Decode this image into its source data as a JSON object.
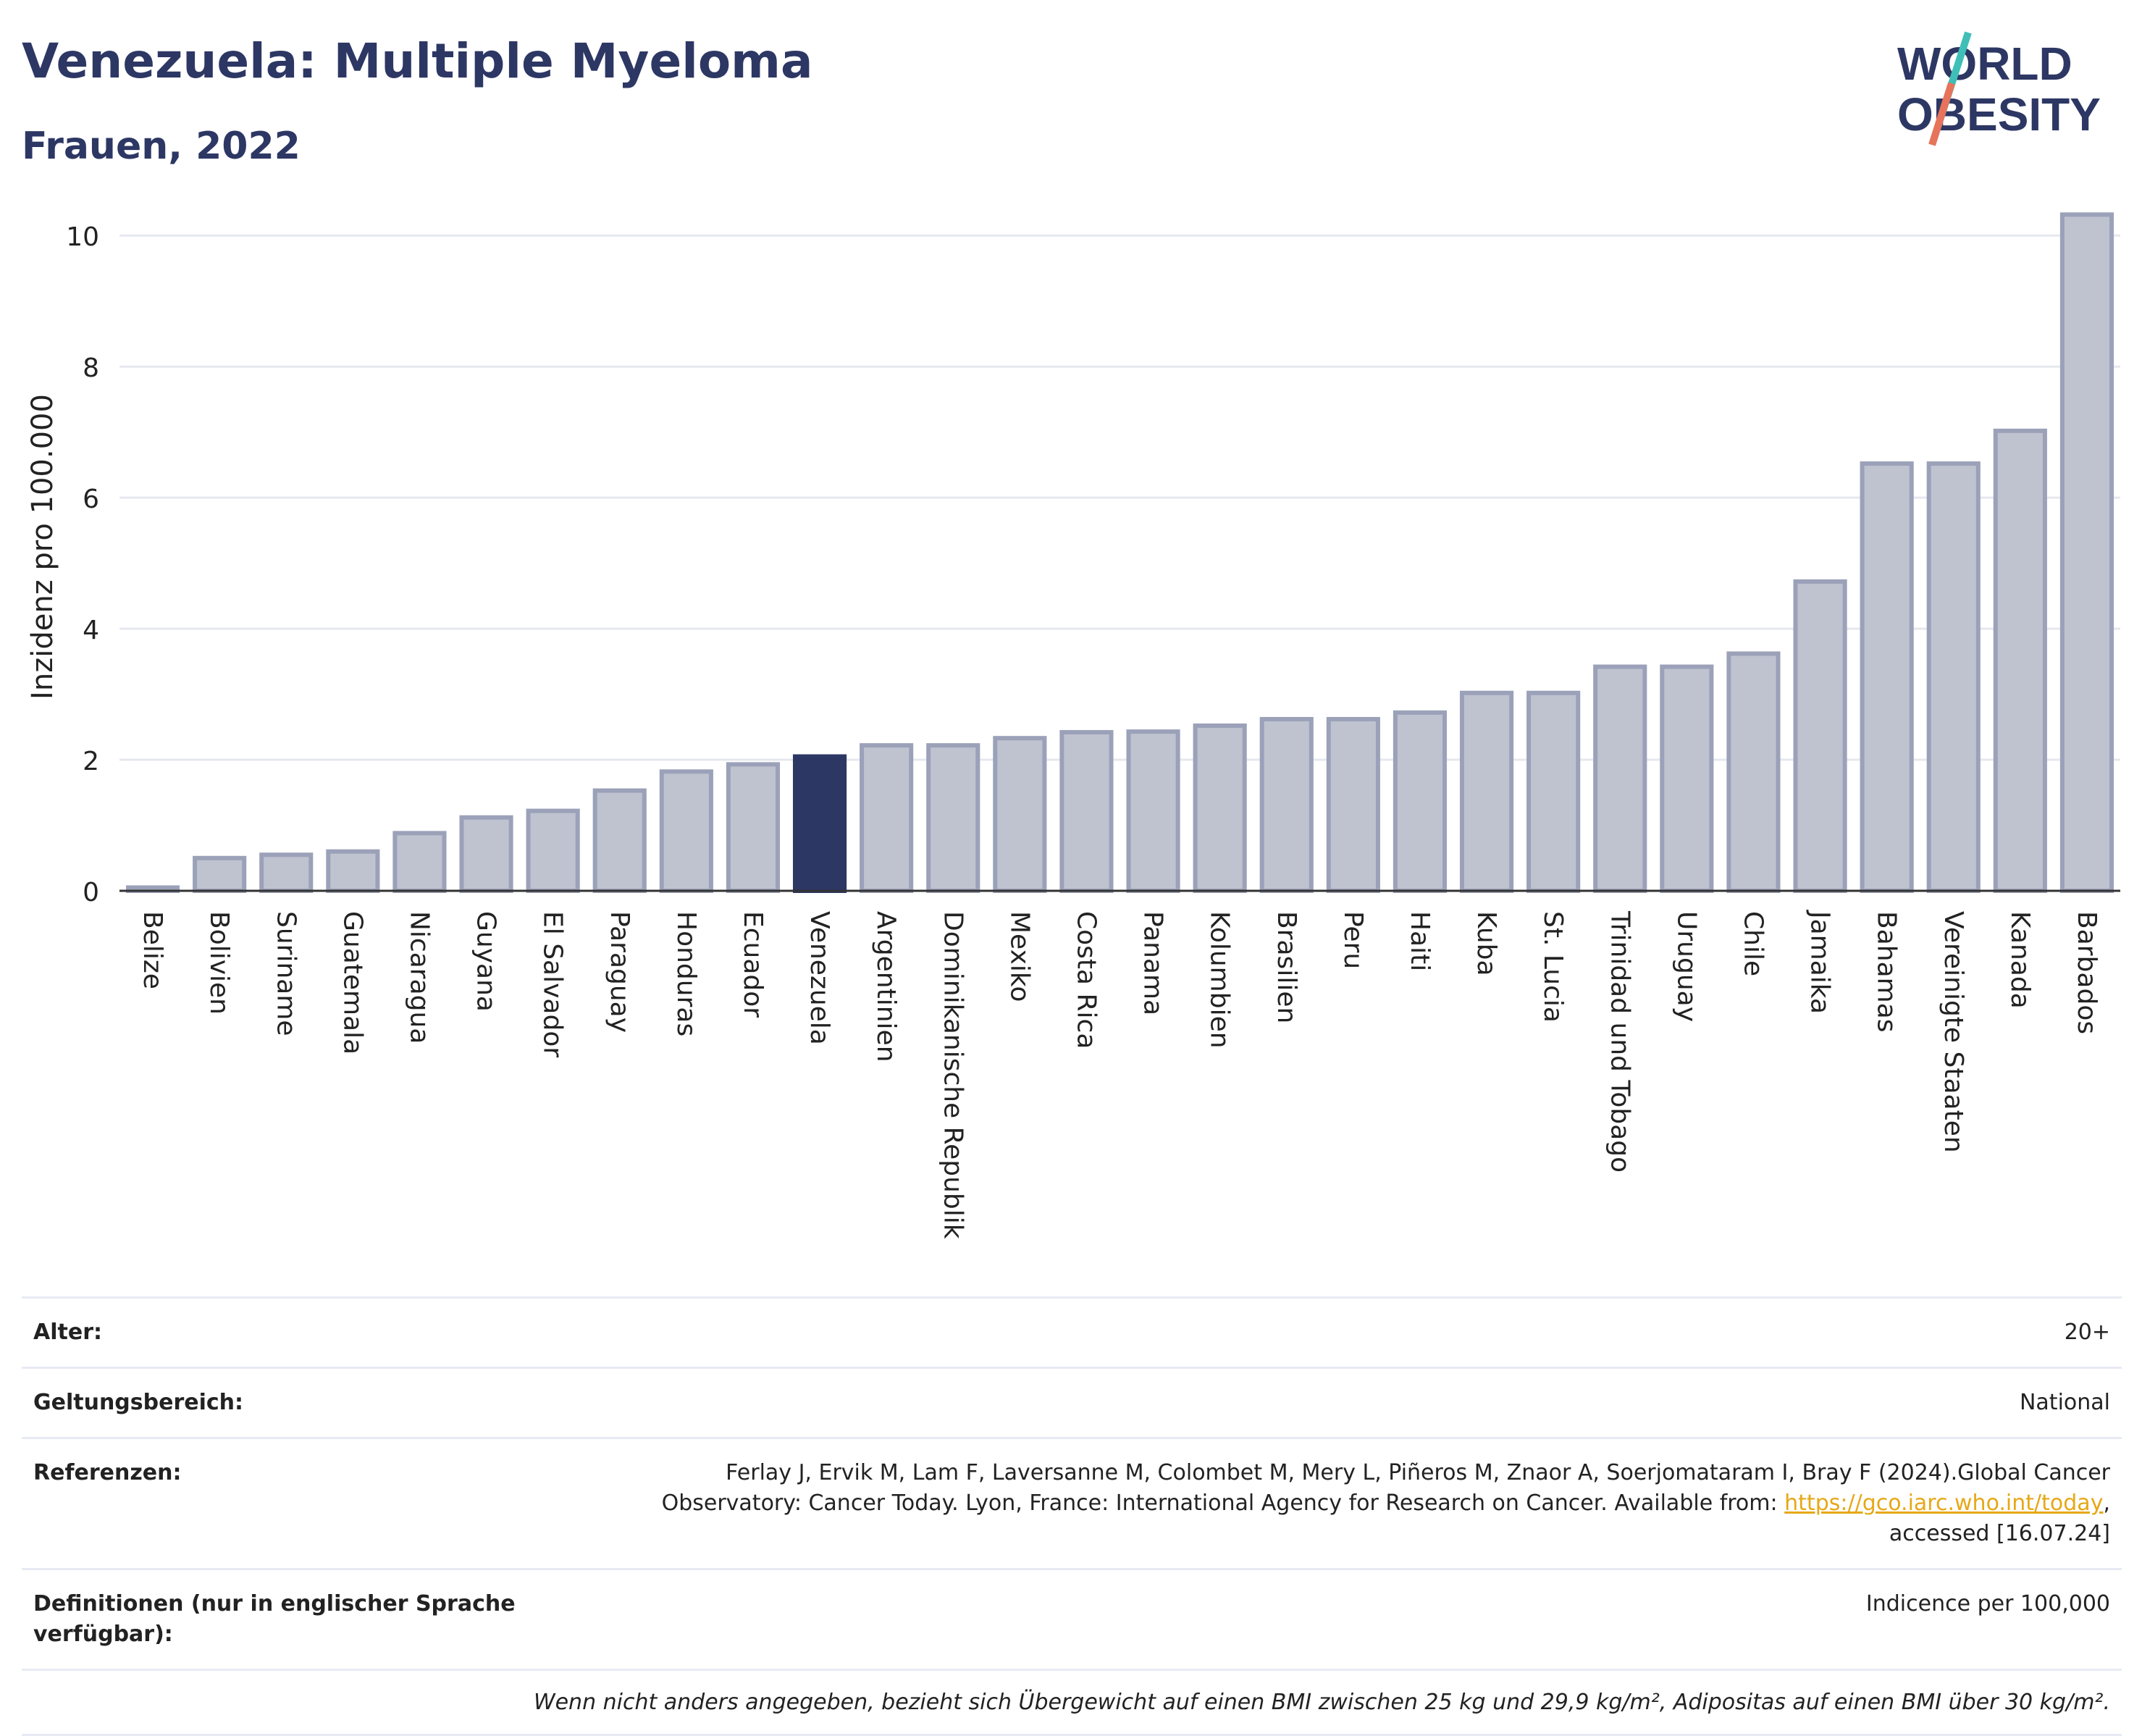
{
  "header": {
    "title": "Venezuela: Multiple Myeloma",
    "subtitle": "Frauen, 2022",
    "logo_line1": "WORLD",
    "logo_line2": "OBESITY"
  },
  "colors": {
    "highlight": "#2d3764",
    "bar_fill": "#bfc3d0",
    "bar_stroke": "#9ba1b8",
    "grid": "#e6e8ef",
    "link": "#e6a817"
  },
  "chart_data": {
    "type": "bar",
    "title": "",
    "xlabel": "",
    "ylabel": "Inzidenz pro 100.000",
    "ylim": [
      0,
      10.5
    ],
    "yticks": [
      0,
      2,
      4,
      6,
      8,
      10
    ],
    "grid": true,
    "highlight": "Venezuela",
    "categories": [
      "Belize",
      "Bolivien",
      "Suriname",
      "Guatemala",
      "Nicaragua",
      "Guyana",
      "El Salvador",
      "Paraguay",
      "Honduras",
      "Ecuador",
      "Venezuela",
      "Argentinien",
      "Dominikanische Republik",
      "Mexiko",
      "Costa Rica",
      "Panama",
      "Kolumbien",
      "Brasilien",
      "Peru",
      "Haiti",
      "Kuba",
      "St. Lucia",
      "Trinidad und Tobago",
      "Uruguay",
      "Chile",
      "Jamaika",
      "Bahamas",
      "Vereinigte Staaten",
      "Kanada",
      "Barbados"
    ],
    "values": [
      0.05,
      0.5,
      0.55,
      0.6,
      0.88,
      1.12,
      1.22,
      1.53,
      1.82,
      1.93,
      2.05,
      2.22,
      2.22,
      2.33,
      2.42,
      2.43,
      2.52,
      2.62,
      2.62,
      2.72,
      3.02,
      3.02,
      3.42,
      3.42,
      3.62,
      4.72,
      6.52,
      6.52,
      7.02,
      10.32
    ]
  },
  "meta": {
    "rows": [
      {
        "label": "Alter:",
        "value": "20+"
      },
      {
        "label": "Geltungsbereich:",
        "value": "National"
      }
    ],
    "references_label": "Referenzen:",
    "references_text": "Ferlay J, Ervik M, Lam F, Laversanne M, Colombet M, Mery L, Piñeros M, Znaor A, Soerjomataram I, Bray F (2024).Global Cancer Observatory: Cancer Today. Lyon, France: International Agency for Research on Cancer. Available from: ",
    "references_link": "https://gco.iarc.who.int/today",
    "references_suffix": ", accessed [16.07.24]",
    "definitions_label": "Definitionen (nur in englischer Sprache verfügbar):",
    "definitions_value": "Indicence per 100,000",
    "footnote": "Wenn nicht anders angegeben, bezieht sich Übergewicht auf einen BMI zwischen 25 kg und 29,9 kg/m², Adipositas auf einen BMI über 30 kg/m²."
  }
}
